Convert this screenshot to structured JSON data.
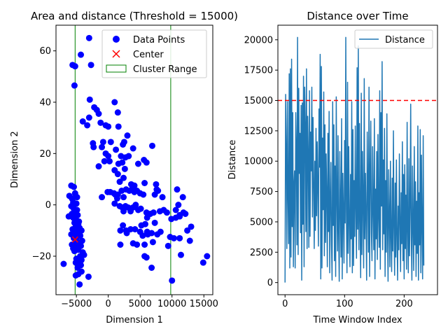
{
  "chart_data": [
    {
      "type": "scatter",
      "title": "Area and distance (Threshold = 15000)",
      "xlabel": "Dimension 1",
      "ylabel": "Dimension 2",
      "xlim": [
        -8200,
        16400
      ],
      "ylim": [
        -35,
        70
      ],
      "xticks": [
        -5000,
        0,
        5000,
        10000,
        15000
      ],
      "xtick_labels": [
        "−5000",
        "0",
        "5000",
        "10000",
        "15000"
      ],
      "yticks": [
        -20,
        0,
        20,
        40,
        60
      ],
      "ytick_labels": [
        "−20",
        "0",
        "20",
        "40",
        "60"
      ],
      "grid": false,
      "legend": {
        "position": "top-right",
        "entries": [
          {
            "label": "Data Points",
            "marker": "circle",
            "color": "#0000ff"
          },
          {
            "label": "Center",
            "marker": "x",
            "color": "#ff0000"
          },
          {
            "label": "Cluster Range",
            "marker": "rect",
            "color": "#008000"
          }
        ]
      },
      "series": [
        {
          "name": "Data Points",
          "color": "#0000ff",
          "points": [
            [
              -3000,
              65
            ],
            [
              -4300,
              58.5
            ],
            [
              -5600,
              54.5
            ],
            [
              -5200,
              54
            ],
            [
              -2700,
              54.5
            ],
            [
              -5300,
              46.5
            ],
            [
              -2900,
              41
            ],
            [
              -2200,
              38
            ],
            [
              -1800,
              37
            ],
            [
              -1500,
              35.5
            ],
            [
              -3000,
              34
            ],
            [
              -4000,
              32.5
            ],
            [
              -3300,
              31
            ],
            [
              -1200,
              32
            ],
            [
              -400,
              31
            ],
            [
              0,
              30.5
            ],
            [
              1600,
              30.5
            ],
            [
              1000,
              40
            ],
            [
              1500,
              36
            ],
            [
              -2400,
              24
            ],
            [
              -2300,
              22.5
            ],
            [
              -800,
              24.5
            ],
            [
              -1000,
              22.5
            ],
            [
              400,
              24.5
            ],
            [
              2300,
              23.5
            ],
            [
              2500,
              24.5
            ],
            [
              3000,
              27
            ],
            [
              3900,
              22
            ],
            [
              6900,
              23
            ],
            [
              -1500,
              15
            ],
            [
              -400,
              20
            ],
            [
              0,
              19
            ],
            [
              1200,
              21.5
            ],
            [
              2000,
              19
            ],
            [
              2700,
              18.5
            ],
            [
              3200,
              19
            ],
            [
              -600,
              17
            ],
            [
              200,
              17
            ],
            [
              1600,
              16
            ],
            [
              2200,
              16.5
            ],
            [
              4700,
              16
            ],
            [
              5600,
              17.5
            ],
            [
              6000,
              16.5
            ],
            [
              1000,
              13.5
            ],
            [
              1500,
              12
            ],
            [
              2600,
              14
            ],
            [
              2400,
              10.5
            ],
            [
              1800,
              9
            ],
            [
              3600,
              8
            ],
            [
              4100,
              7.5
            ],
            [
              5700,
              8.5
            ],
            [
              7500,
              8
            ],
            [
              7800,
              5.5
            ],
            [
              7300,
              4
            ],
            [
              7600,
              6
            ],
            [
              8500,
              3
            ],
            [
              10800,
              6
            ],
            [
              11700,
              3
            ],
            [
              11000,
              0
            ],
            [
              10600,
              -2
            ],
            [
              11200,
              -4.5
            ],
            [
              11800,
              -3
            ],
            [
              12100,
              -3.5
            ],
            [
              -1000,
              3
            ],
            [
              -100,
              5
            ],
            [
              300,
              5
            ],
            [
              900,
              4.5
            ],
            [
              1100,
              4
            ],
            [
              1500,
              4
            ],
            [
              2100,
              5.5
            ],
            [
              2400,
              3
            ],
            [
              2800,
              6
            ],
            [
              3300,
              5.5
            ],
            [
              3800,
              6.5
            ],
            [
              4100,
              5
            ],
            [
              4500,
              5.5
            ],
            [
              5000,
              4.5
            ],
            [
              5500,
              4
            ],
            [
              1400,
              2.5
            ],
            [
              1000,
              0.5
            ],
            [
              1800,
              -0.5
            ],
            [
              2200,
              -1
            ],
            [
              2400,
              -2.5
            ],
            [
              2700,
              -0.5
            ],
            [
              3100,
              -1
            ],
            [
              3500,
              -2.5
            ],
            [
              3900,
              -1
            ],
            [
              4300,
              0
            ],
            [
              4700,
              -2
            ],
            [
              5100,
              -1.5
            ],
            [
              6000,
              -3
            ],
            [
              6600,
              -3.5
            ],
            [
              7100,
              -3
            ],
            [
              8100,
              -2.5
            ],
            [
              8700,
              -2
            ],
            [
              9200,
              -3
            ],
            [
              9900,
              -5.5
            ],
            [
              10600,
              -5
            ],
            [
              11200,
              -4
            ],
            [
              6100,
              -5
            ],
            [
              5800,
              -7.5
            ],
            [
              7300,
              -7
            ],
            [
              5200,
              -8
            ],
            [
              2300,
              -8
            ],
            [
              1900,
              -10
            ],
            [
              2800,
              -10
            ],
            [
              3500,
              -9.5
            ],
            [
              4200,
              -9.5
            ],
            [
              5000,
              -10.5
            ],
            [
              6100,
              -10.5
            ],
            [
              6800,
              -11
            ],
            [
              7700,
              -11.5
            ],
            [
              8200,
              -10.5
            ],
            [
              2900,
              -11
            ],
            [
              5400,
              -12
            ],
            [
              6200,
              -11.5
            ],
            [
              9700,
              -12.5
            ],
            [
              10300,
              -13
            ],
            [
              11200,
              -13
            ],
            [
              12400,
              -10
            ],
            [
              13000,
              -8.5
            ],
            [
              12800,
              -14
            ],
            [
              7000,
              -14.5
            ],
            [
              3900,
              -15
            ],
            [
              4500,
              -15.5
            ],
            [
              5700,
              -15.5
            ],
            [
              1900,
              -15.5
            ],
            [
              9400,
              -16
            ],
            [
              11400,
              -19.5
            ],
            [
              14900,
              -22.5
            ],
            [
              15500,
              -20
            ],
            [
              5700,
              -20
            ],
            [
              6000,
              -20.5
            ],
            [
              6800,
              -24.5
            ],
            [
              10000,
              -29.5
            ],
            [
              -7000,
              -23
            ],
            [
              -6100,
              3.5
            ],
            [
              -5800,
              7.5
            ],
            [
              -5400,
              7
            ],
            [
              -5200,
              4.5
            ],
            [
              -4900,
              3
            ],
            [
              -5700,
              2.5
            ],
            [
              -5500,
              1
            ],
            [
              -5000,
              0.5
            ],
            [
              -5800,
              -0.5
            ],
            [
              -5400,
              -1.5
            ],
            [
              -4900,
              -2
            ],
            [
              -5200,
              -3
            ],
            [
              -5700,
              -3.5
            ],
            [
              -4800,
              -4
            ],
            [
              -6200,
              -4.5
            ],
            [
              -5500,
              -5
            ],
            [
              -5000,
              -6
            ],
            [
              -4600,
              -6.5
            ],
            [
              -5300,
              -7
            ],
            [
              -4700,
              -7.5
            ],
            [
              -5100,
              -8.5
            ],
            [
              -4500,
              -9
            ],
            [
              -5600,
              -9.5
            ],
            [
              -4200,
              -10
            ],
            [
              -4800,
              -10.5
            ],
            [
              -5300,
              -11
            ],
            [
              -5800,
              -11.5
            ],
            [
              -4400,
              -12
            ],
            [
              -4900,
              -12.5
            ],
            [
              -5400,
              -13
            ],
            [
              -4100,
              -14
            ],
            [
              -4600,
              -14.5
            ],
            [
              -5200,
              -15
            ],
            [
              -5700,
              -15.5
            ],
            [
              -4300,
              -16
            ],
            [
              -4900,
              -16.5
            ],
            [
              -5500,
              -17
            ],
            [
              -4700,
              -17.5
            ],
            [
              -5300,
              -18
            ],
            [
              -4000,
              -18.5
            ],
            [
              -3800,
              -19.5
            ],
            [
              -4400,
              -20
            ],
            [
              -5000,
              -21
            ],
            [
              -4200,
              -21.5
            ],
            [
              -4600,
              -22
            ],
            [
              -5100,
              -22.5
            ],
            [
              -4300,
              -23.5
            ],
            [
              -4800,
              -24.5
            ],
            [
              -4200,
              -26
            ],
            [
              -4700,
              -27
            ],
            [
              -5100,
              -27.5
            ],
            [
              -3100,
              -28
            ],
            [
              -4500,
              -31
            ]
          ]
        },
        {
          "name": "Center",
          "color": "#ff0000",
          "marker": "x",
          "points": [
            [
              -5200,
              -13.5
            ]
          ]
        }
      ],
      "cluster_range": {
        "color": "#008000",
        "x": [
          -5200,
          9800
        ]
      }
    },
    {
      "type": "line",
      "title": "Distance over Time",
      "xlabel": "Time Window Index",
      "ylabel": "Distance",
      "xlim": [
        -12,
        256
      ],
      "ylim": [
        -1000,
        21200
      ],
      "xticks": [
        0,
        100,
        200
      ],
      "xtick_labels": [
        "0",
        "100",
        "200"
      ],
      "yticks": [
        0,
        2500,
        5000,
        7500,
        10000,
        12500,
        15000,
        17500,
        20000
      ],
      "ytick_labels": [
        "0",
        "2500",
        "5000",
        "7500",
        "10000",
        "12500",
        "15000",
        "17500",
        "20000"
      ],
      "grid": false,
      "threshold": {
        "value": 15000,
        "color": "#ff0000",
        "style": "dashed"
      },
      "legend": {
        "position": "top-right",
        "entries": [
          {
            "label": "Distance",
            "marker": "line",
            "color": "#1f77b4"
          }
        ]
      },
      "series": [
        {
          "name": "Distance",
          "color": "#1f77b4",
          "values": [
            0,
            15500,
            11200,
            2800,
            14900,
            7300,
            3200,
            17200,
            1200,
            17600,
            2100,
            18400,
            4600,
            14000,
            1300,
            8100,
            9200,
            1200,
            14000,
            11000,
            3100,
            20200,
            2300,
            16000,
            9000,
            12300,
            4100,
            14600,
            200,
            14800,
            4800,
            17000,
            1300,
            16100,
            12900,
            4200,
            17600,
            2800,
            13700,
            10500,
            2900,
            15800,
            3800,
            12400,
            9200,
            16100,
            5400,
            13600,
            8200,
            2800,
            10000,
            4300,
            12700,
            5500,
            11600,
            7800,
            3000,
            14300,
            9500,
            18800,
            300,
            17800,
            1200,
            11900,
            6000,
            15700,
            2200,
            13000,
            3300,
            10600,
            7300,
            1300,
            12300,
            4200,
            14100,
            800,
            6600,
            9900,
            3100,
            200,
            14900,
            4700,
            13000,
            1800,
            9600,
            500,
            15300,
            7200,
            2600,
            12100,
            4000,
            100,
            10800,
            6400,
            2100,
            13500,
            300,
            9000,
            5600,
            1600,
            11700,
            4900,
            20200,
            6000,
            800,
            16500,
            2400,
            11200,
            5000,
            1300,
            8900,
            3600,
            14900,
            800,
            12600,
            1400,
            8400,
            3800,
            12900,
            6200,
            2000,
            17700,
            4400,
            19500,
            2700,
            13100,
            5100,
            400,
            15600,
            2300,
            10800,
            6600,
            1200,
            16800,
            3600,
            9000,
            5300,
            200,
            12400,
            7900,
            2500,
            16100,
            500,
            8900,
            13300,
            4100,
            1800,
            11200,
            6200,
            2700,
            13500,
            300,
            7700,
            3600,
            10800,
            1900,
            12200,
            5500,
            2900,
            15800,
            1100,
            14000,
            6300,
            18200,
            2700,
            10100,
            4000,
            12700,
            500,
            8400,
            2500,
            13900,
            4600,
            100,
            9300,
            5600,
            1300,
            10000,
            3800,
            900,
            8600,
            2600,
            12500,
            4500,
            600,
            8200,
            2100,
            10100,
            4000,
            200,
            6300,
            2700,
            10600,
            5000,
            900,
            7400,
            3200,
            11600,
            1800,
            8900,
            300,
            9700,
            2800,
            7200,
            1100,
            13200,
            4300,
            800,
            10200,
            2200,
            6200,
            14700,
            3600,
            200,
            9600,
            4700,
            1000,
            11200,
            3100,
            8300,
            500,
            6700,
            2400,
            12900,
            200,
            7400,
            3100,
            12600,
            800,
            10500,
            4600,
            300,
            12100,
            1400
          ]
        }
      ]
    }
  ]
}
